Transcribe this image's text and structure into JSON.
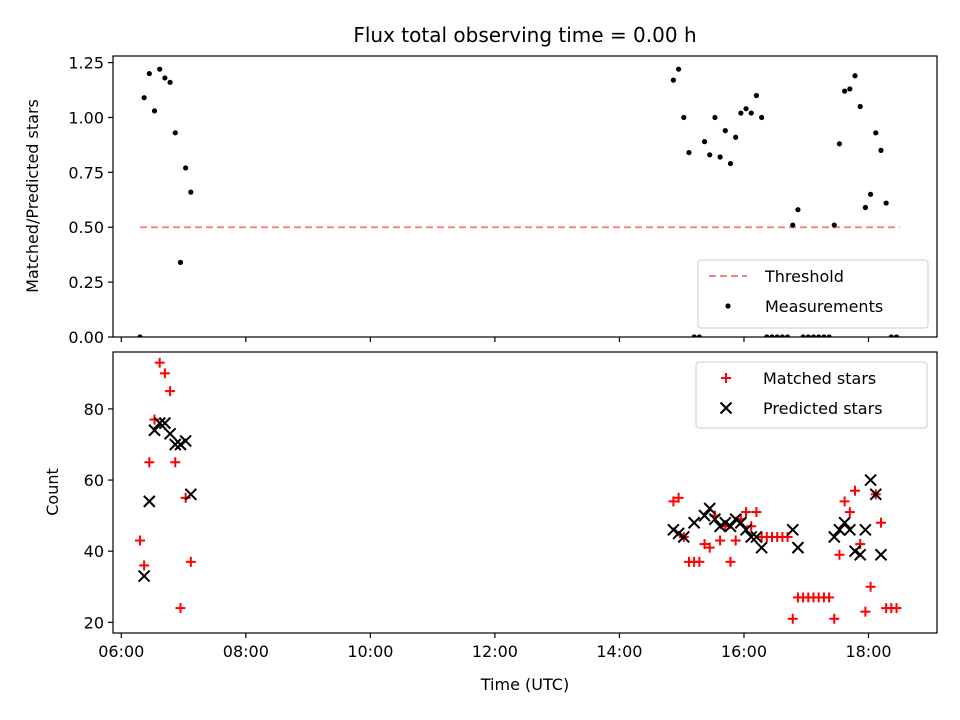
{
  "chart_data": [
    {
      "type": "scatter",
      "title": "Flux total observing time = 0.00 h",
      "xlabel": "",
      "ylabel": "Matched/Predicted stars",
      "xlim": [
        "05:52",
        "19:06"
      ],
      "ylim": [
        0,
        1.28
      ],
      "yticks": [
        "0.00",
        "0.25",
        "0.50",
        "0.75",
        "1.00",
        "1.25"
      ],
      "ytick_values": [
        0,
        0.25,
        0.5,
        0.75,
        1.0,
        1.25
      ],
      "grid": false,
      "legend_position": "lower-right",
      "threshold": {
        "name": "Threshold",
        "value": 0.5,
        "x_start": "06:18",
        "x_end": "18:30",
        "color": "#ff8080",
        "style": "dashed"
      },
      "series": [
        {
          "name": "Measurements",
          "marker": "dot",
          "color": "#000000",
          "x": [
            "06:18",
            "06:22",
            "06:27",
            "06:32",
            "06:37",
            "06:42",
            "06:47",
            "06:52",
            "06:57",
            "07:02",
            "07:07",
            "14:52",
            "14:57",
            "15:02",
            "15:07",
            "15:12",
            "15:17",
            "15:22",
            "15:27",
            "15:32",
            "15:37",
            "15:42",
            "15:47",
            "15:52",
            "15:57",
            "16:02",
            "16:07",
            "16:12",
            "16:17",
            "16:22",
            "16:27",
            "16:32",
            "16:37",
            "16:42",
            "16:47",
            "16:52",
            "16:57",
            "17:02",
            "17:07",
            "17:12",
            "17:17",
            "17:22",
            "17:27",
            "17:32",
            "17:37",
            "17:42",
            "17:47",
            "17:52",
            "17:57",
            "18:02",
            "18:07",
            "18:12",
            "18:17",
            "18:22",
            "18:27"
          ],
          "y": [
            0.0,
            1.09,
            1.2,
            1.03,
            1.22,
            1.18,
            1.16,
            0.93,
            0.34,
            0.77,
            0.66,
            1.17,
            1.22,
            1.0,
            0.84,
            0.0,
            0.0,
            0.89,
            0.83,
            1.0,
            0.82,
            0.94,
            0.79,
            0.91,
            1.02,
            1.04,
            1.02,
            1.1,
            1.0,
            0.0,
            0.0,
            0.0,
            0.0,
            0.0,
            0.51,
            0.58,
            0.0,
            0.0,
            0.0,
            0.0,
            0.0,
            0.0,
            0.51,
            0.88,
            1.12,
            1.13,
            1.19,
            1.05,
            0.59,
            0.65,
            0.93,
            0.85,
            0.61,
            0.0,
            0.0
          ]
        }
      ]
    },
    {
      "type": "scatter",
      "title": "",
      "xlabel": "Time (UTC)",
      "ylabel": "Count",
      "xlim": [
        "05:52",
        "19:06"
      ],
      "xticks": [
        "06:00",
        "08:00",
        "10:00",
        "12:00",
        "14:00",
        "16:00",
        "18:00"
      ],
      "ylim": [
        17,
        96
      ],
      "yticks": [
        "20",
        "40",
        "60",
        "80"
      ],
      "ytick_values": [
        20,
        40,
        60,
        80
      ],
      "grid": false,
      "legend_position": "upper-right",
      "series": [
        {
          "name": "Matched stars",
          "marker": "plus",
          "color": "#ff0000",
          "x": [
            "06:18",
            "06:22",
            "06:27",
            "06:32",
            "06:37",
            "06:42",
            "06:47",
            "06:52",
            "06:57",
            "07:02",
            "07:07",
            "14:52",
            "14:57",
            "15:02",
            "15:07",
            "15:12",
            "15:17",
            "15:22",
            "15:27",
            "15:32",
            "15:37",
            "15:42",
            "15:47",
            "15:52",
            "15:57",
            "16:02",
            "16:07",
            "16:12",
            "16:17",
            "16:22",
            "16:27",
            "16:32",
            "16:37",
            "16:42",
            "16:47",
            "16:52",
            "16:57",
            "17:02",
            "17:07",
            "17:12",
            "17:17",
            "17:22",
            "17:27",
            "17:32",
            "17:37",
            "17:42",
            "17:47",
            "17:52",
            "17:57",
            "18:02",
            "18:07",
            "18:12",
            "18:17",
            "18:22",
            "18:27"
          ],
          "y": [
            43,
            36,
            65,
            77,
            93,
            90,
            85,
            65,
            24,
            55,
            37,
            54,
            55,
            44,
            37,
            37,
            37,
            42,
            41,
            50,
            43,
            47,
            37,
            43,
            49,
            51,
            47,
            51,
            44,
            44,
            44,
            44,
            44,
            44,
            21,
            27,
            27,
            27,
            27,
            27,
            27,
            27,
            21,
            39,
            54,
            51,
            57,
            42,
            23,
            30,
            56,
            48,
            24,
            24,
            24
          ]
        },
        {
          "name": "Predicted stars",
          "marker": "x",
          "color": "#000000",
          "x": [
            "06:22",
            "06:27",
            "06:32",
            "06:37",
            "06:42",
            "06:47",
            "06:52",
            "06:57",
            "07:02",
            "07:07",
            "14:52",
            "14:57",
            "15:02",
            "15:12",
            "15:22",
            "15:27",
            "15:32",
            "15:37",
            "15:42",
            "15:47",
            "15:52",
            "15:57",
            "16:02",
            "16:07",
            "16:12",
            "16:17",
            "16:47",
            "16:52",
            "17:27",
            "17:32",
            "17:37",
            "17:42",
            "17:47",
            "17:52",
            "17:57",
            "18:02",
            "18:07",
            "18:12"
          ],
          "y": [
            33,
            54,
            74,
            76,
            76,
            73,
            70,
            70,
            71,
            56,
            46,
            45,
            44,
            48,
            50,
            52,
            49,
            47,
            48,
            47,
            49,
            48,
            46,
            44,
            44,
            41,
            46,
            41,
            44,
            46,
            48,
            46,
            40,
            39,
            46,
            60,
            56,
            39
          ]
        }
      ]
    }
  ]
}
